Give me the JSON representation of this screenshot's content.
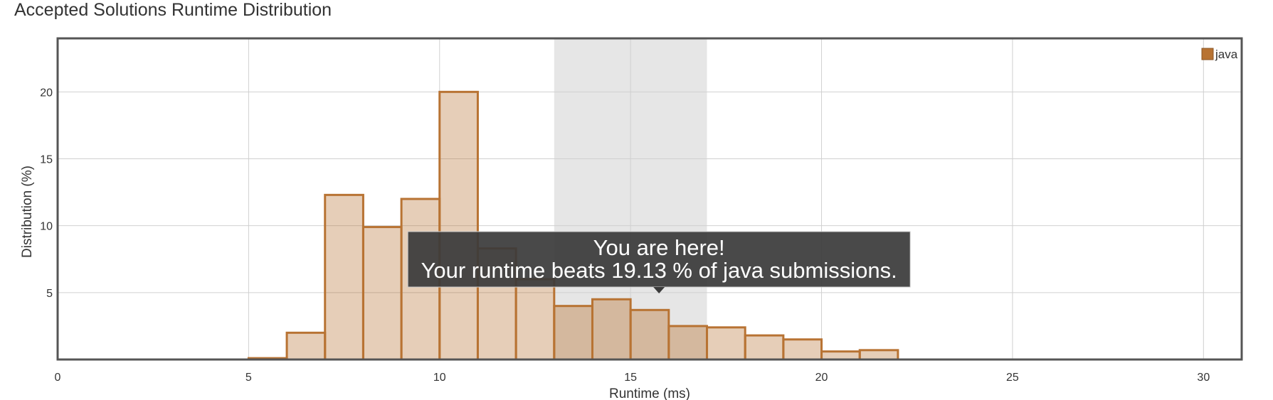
{
  "title": "Accepted Solutions Runtime Distribution",
  "chart_data": {
    "type": "bar",
    "title": "Accepted Solutions Runtime Distribution",
    "xlabel": "Runtime (ms)",
    "ylabel": "Distribution (%)",
    "xlim": [
      0,
      31
    ],
    "ylim": [
      0,
      24
    ],
    "xticks": [
      0,
      5,
      10,
      15,
      20,
      25,
      30
    ],
    "yticks": [
      5,
      10,
      15,
      20
    ],
    "grid": true,
    "legend_position": "top-right",
    "bin_width": 1,
    "series": [
      {
        "name": "java",
        "color": "#b87333",
        "bins": [
          {
            "x": 5,
            "value": 0.1
          },
          {
            "x": 6,
            "value": 2.0
          },
          {
            "x": 7,
            "value": 12.3
          },
          {
            "x": 8,
            "value": 9.9
          },
          {
            "x": 9,
            "value": 12.0
          },
          {
            "x": 10,
            "value": 20.0
          },
          {
            "x": 11,
            "value": 8.3
          },
          {
            "x": 12,
            "value": 6.0
          },
          {
            "x": 13,
            "value": 4.0
          },
          {
            "x": 14,
            "value": 4.5
          },
          {
            "x": 15,
            "value": 3.7
          },
          {
            "x": 16,
            "value": 2.5
          },
          {
            "x": 17,
            "value": 2.4
          },
          {
            "x": 18,
            "value": 1.8
          },
          {
            "x": 19,
            "value": 1.5
          },
          {
            "x": 20,
            "value": 0.6
          },
          {
            "x": 21,
            "value": 0.7
          }
        ]
      }
    ],
    "highlight_band": [
      13,
      17
    ],
    "annotation": {
      "line1": "You are here!",
      "line2": "Your runtime beats 19.13 % of java submissions.",
      "x": 15
    }
  }
}
